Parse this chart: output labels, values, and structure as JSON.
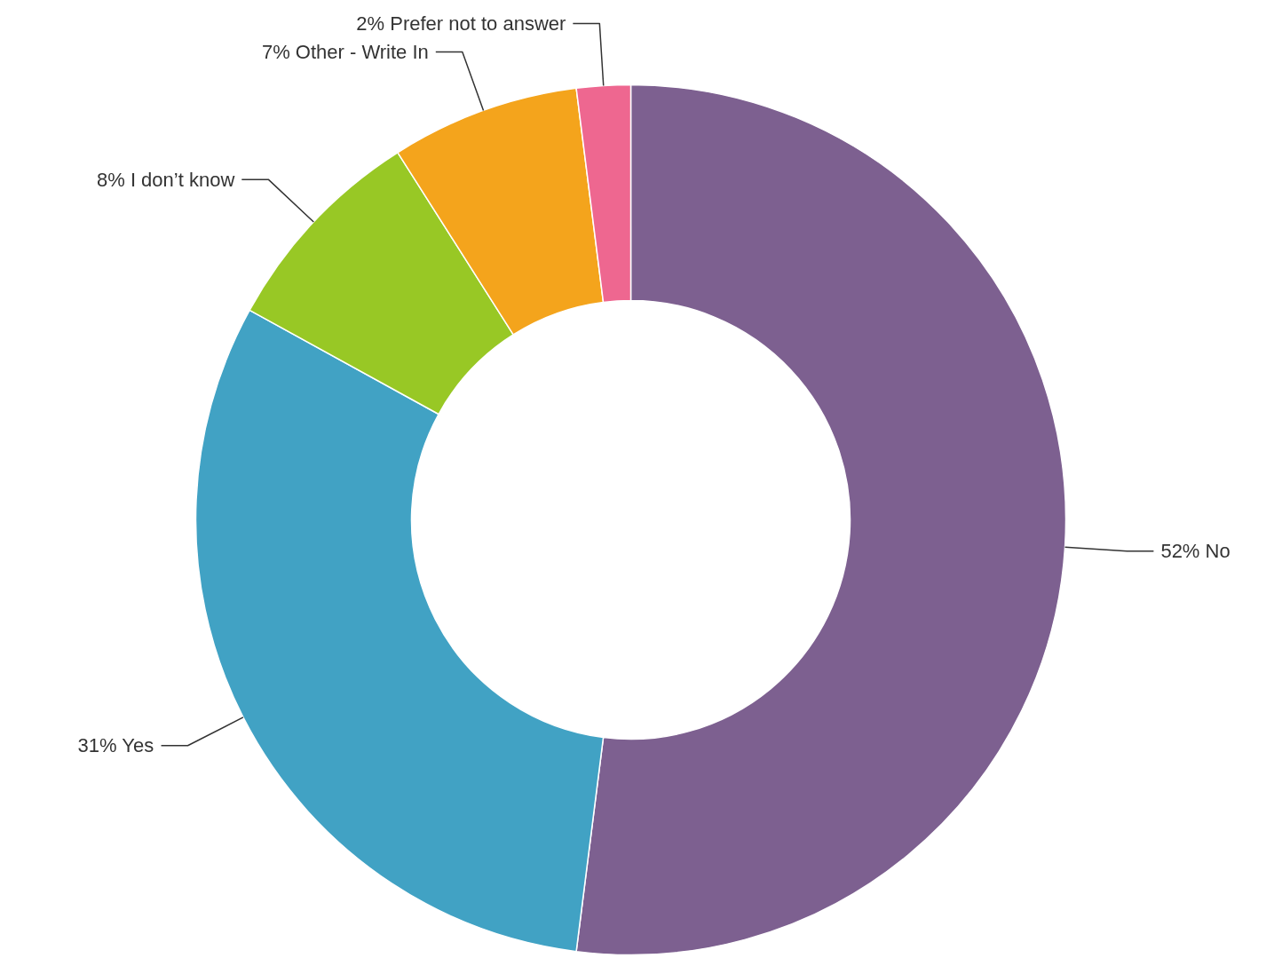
{
  "chart_data": {
    "type": "donut",
    "categories": [
      "No",
      "Yes",
      "I don’t know",
      "Other - Write In",
      "Prefer not to answer"
    ],
    "values": [
      52,
      31,
      8,
      7,
      2
    ],
    "value_labels": [
      "52%",
      "31%",
      "8%",
      "7%",
      "2%"
    ],
    "colors": [
      "#7d6090",
      "#41a2c4",
      "#98c825",
      "#f4a41c",
      "#ee6790"
    ]
  }
}
